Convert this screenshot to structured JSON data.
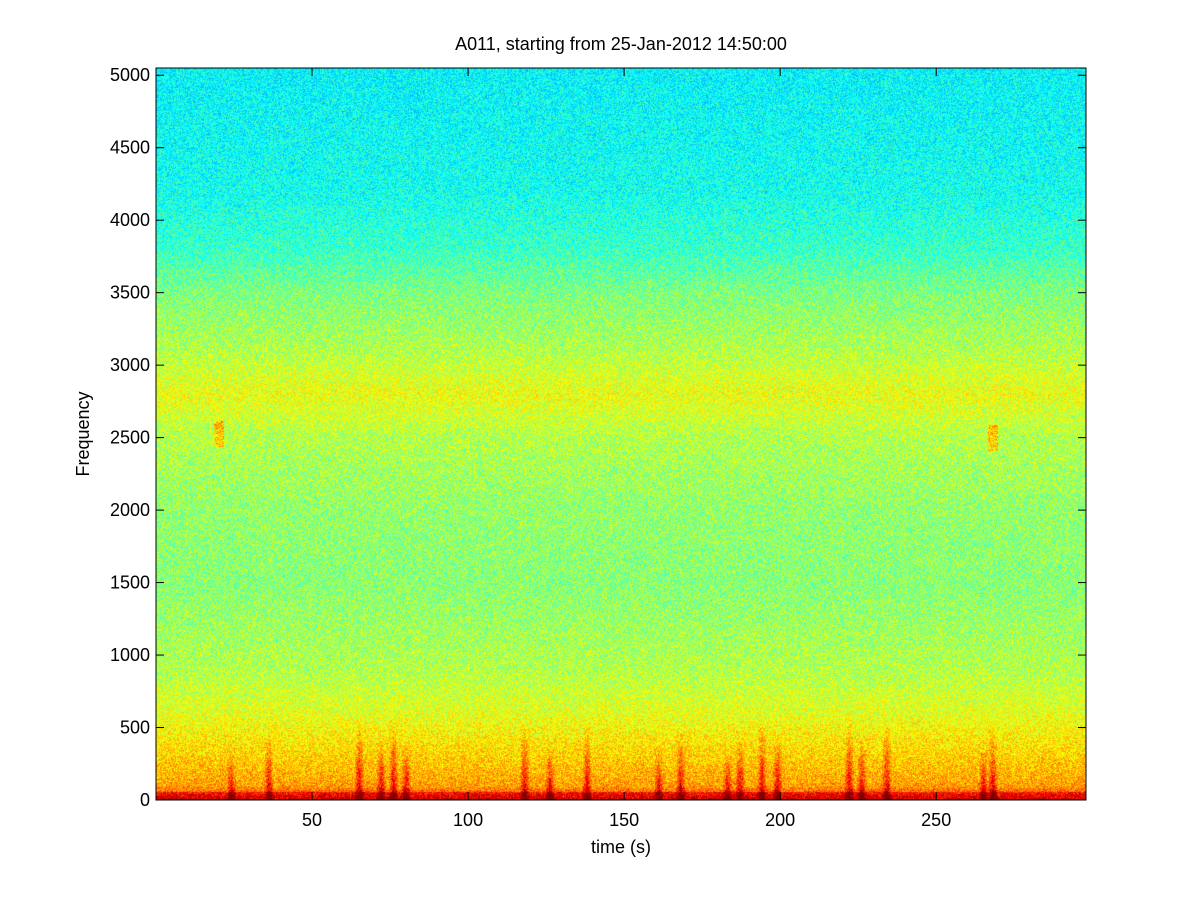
{
  "chart_data": {
    "type": "heatmap",
    "title": "A011, starting from 25-Jan-2012 14:50:00",
    "xlabel": "time (s)",
    "ylabel": "Frequency",
    "xlim": [
      0,
      298
    ],
    "ylim": [
      0,
      5050
    ],
    "x_ticks": [
      50,
      100,
      150,
      200,
      250
    ],
    "y_ticks": [
      0,
      500,
      1000,
      1500,
      2000,
      2500,
      3000,
      3500,
      4000,
      4500,
      5000
    ],
    "colormap": "jet",
    "grid": false,
    "legend": "none",
    "intensity_by_frequency": [
      {
        "frequency": 0,
        "level": 0.86
      },
      {
        "frequency": 100,
        "level": 0.72
      },
      {
        "frequency": 300,
        "level": 0.67
      },
      {
        "frequency": 600,
        "level": 0.6
      },
      {
        "frequency": 900,
        "level": 0.55
      },
      {
        "frequency": 1500,
        "level": 0.51
      },
      {
        "frequency": 2000,
        "level": 0.52
      },
      {
        "frequency": 2500,
        "level": 0.55
      },
      {
        "frequency": 2800,
        "level": 0.61
      },
      {
        "frequency": 3100,
        "level": 0.55
      },
      {
        "frequency": 3500,
        "level": 0.5
      },
      {
        "frequency": 3800,
        "level": 0.43
      },
      {
        "frequency": 4200,
        "level": 0.39
      },
      {
        "frequency": 5050,
        "level": 0.37
      }
    ],
    "broadband_events_time_s": [
      24,
      36,
      65,
      72,
      76,
      80,
      118,
      126,
      138,
      161,
      168,
      183,
      187,
      194,
      199,
      222,
      226,
      234,
      265,
      268
    ],
    "narrowband_events": [
      {
        "time": 20,
        "frequency": 2530
      },
      {
        "time": 268,
        "frequency": 2500
      }
    ]
  }
}
